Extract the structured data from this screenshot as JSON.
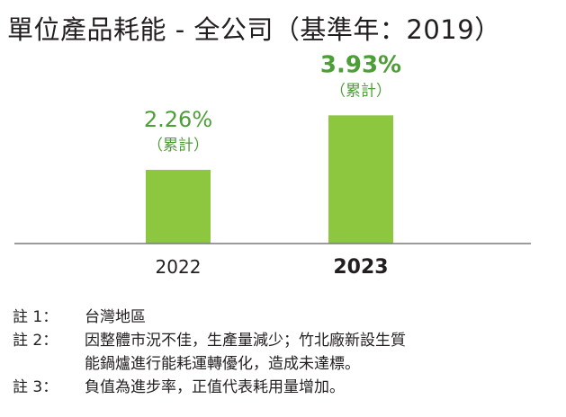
{
  "title": "單位產品耗能 - 全公司（基準年：2019）",
  "chart_data": {
    "type": "bar",
    "categories": [
      "2022",
      "2023"
    ],
    "values": [
      2.26,
      3.93
    ],
    "value_labels": [
      "2.26%",
      "3.93%"
    ],
    "sub_labels": [
      "（累計）",
      "（累計）"
    ],
    "highlight_category": "2023",
    "ylim": [
      0,
      5
    ],
    "grid": false,
    "bar_color": "#8dc63f",
    "label_color": "#4c9e36",
    "axis_color": "#7a7a7a"
  },
  "notes": [
    {
      "label": "註 1：",
      "text": "台灣地區"
    },
    {
      "label": "註 2：",
      "text": "因整體市況不佳，生產量減少；竹北廠新設生質\n能鍋爐進行能耗運轉優化，造成未達標。"
    },
    {
      "label": "註 3：",
      "text": "負值為進步率，正值代表耗用量增加。"
    }
  ]
}
